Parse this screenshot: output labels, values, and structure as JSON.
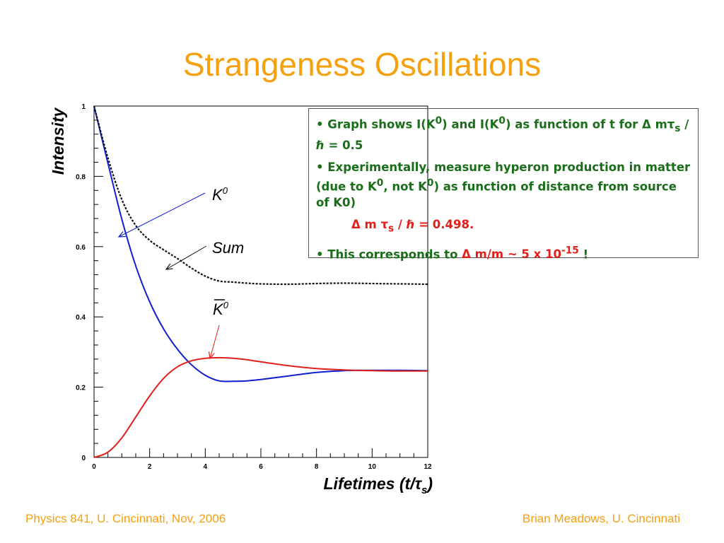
{
  "slide": {
    "title": "Strangeness Oscillations",
    "footer_left": "Physics 841, U. Cincinnati, Nov, 2006",
    "footer_right": "Brian Meadows, U. Cincinnati",
    "accent_color": "#f5a00f"
  },
  "textbox": {
    "bullet1_a": "• Graph shows I(K",
    "bullet1_b": ") and I(K",
    "bullet1_c": ") as function of t for ",
    "bullet1_d": " m",
    "bullet1_e": " / ",
    "bullet1_f": " = 0.5",
    "bullet2_a": "• Experimentally, measure hyperon production in matter (due to K",
    "bullet2_b": ", not K",
    "bullet2_c": ") as function of distance from source of K0)",
    "equation_a": " m ",
    "equation_b": " / ",
    "equation_c": " = 0.498.",
    "bullet3_a": "• This corresponds to ",
    "bullet3_b": " m/m ~ 5 x 10",
    "bullet3_c": "-15",
    "bullet3_d": " !",
    "sup0": "0",
    "sub_s": "s",
    "delta": "Δ",
    "tau": "τ",
    "hbar": "ℏ",
    "text_color": "#1a6e1a",
    "highlight_color": "#e0201b"
  },
  "chart_data": {
    "type": "line",
    "xlabel": "Lifetimes (t/τs)",
    "ylabel": "Intensity",
    "xlim": [
      0,
      12
    ],
    "ylim": [
      0,
      1
    ],
    "x_ticks": [
      "0",
      "2",
      "4",
      "6",
      "8",
      "10",
      "12"
    ],
    "y_ticks": [
      "0",
      "0.2",
      "0.4",
      "0.6",
      "0.8",
      "1"
    ],
    "series": [
      {
        "name": "K0",
        "color": "#1020d0",
        "style": "solid",
        "x": [
          0,
          0.5,
          1,
          1.5,
          2,
          2.5,
          3,
          3.5,
          4,
          4.5,
          5,
          5.5,
          6,
          7,
          8,
          9,
          10,
          11,
          12
        ],
        "values": [
          1.0,
          0.837,
          0.678,
          0.545,
          0.443,
          0.366,
          0.308,
          0.264,
          0.234,
          0.218,
          0.217,
          0.218,
          0.222,
          0.232,
          0.242,
          0.247,
          0.248,
          0.248,
          0.247
        ]
      },
      {
        "name": "K0bar",
        "color": "#e0201b",
        "style": "solid",
        "x": [
          0,
          0.5,
          1,
          1.5,
          2,
          2.5,
          3,
          3.5,
          4,
          4.5,
          5,
          5.5,
          6,
          7,
          8,
          9,
          10,
          11,
          12
        ],
        "values": [
          0.0,
          0.015,
          0.056,
          0.115,
          0.175,
          0.225,
          0.258,
          0.275,
          0.282,
          0.284,
          0.282,
          0.278,
          0.272,
          0.261,
          0.253,
          0.249,
          0.247,
          0.246,
          0.246
        ]
      },
      {
        "name": "Sum",
        "color": "#111111",
        "style": "dotted",
        "x": [
          0,
          0.5,
          1,
          1.5,
          2,
          2.5,
          3,
          3.5,
          4,
          4.5,
          5,
          5.5,
          6,
          7,
          8,
          9,
          10,
          11,
          12
        ],
        "values": [
          1.0,
          0.852,
          0.734,
          0.66,
          0.618,
          0.591,
          0.566,
          0.539,
          0.516,
          0.502,
          0.499,
          0.496,
          0.494,
          0.493,
          0.495,
          0.496,
          0.495,
          0.494,
          0.493
        ]
      }
    ],
    "annotations": {
      "k0_label": "K",
      "k0_sup": "0",
      "sum_label": "Sum",
      "k0bar_label": "K",
      "k0bar_sup": "0"
    }
  }
}
